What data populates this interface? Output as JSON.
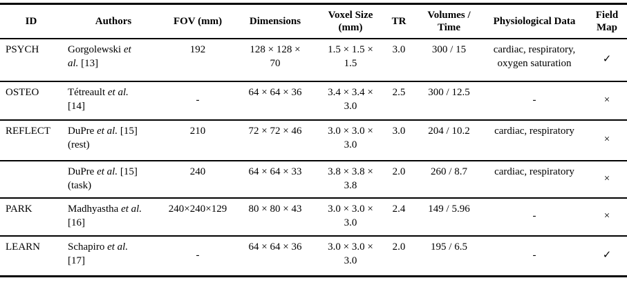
{
  "table": {
    "headers": [
      {
        "key": "id",
        "label": "ID"
      },
      {
        "key": "authors",
        "label": "Authors"
      },
      {
        "key": "fov",
        "label": "FOV (mm)"
      },
      {
        "key": "dimensions",
        "label": "Dimensions"
      },
      {
        "key": "voxel_size",
        "label": "Voxel Size\n(mm)"
      },
      {
        "key": "tr",
        "label": "TR"
      },
      {
        "key": "volumes_time",
        "label": "Volumes /\nTime"
      },
      {
        "key": "physiological_data",
        "label": "Physiological Data"
      },
      {
        "key": "field_map",
        "label": "Field\nMap"
      }
    ],
    "symbols": {
      "check": "✓",
      "cross": "×",
      "none": "-"
    },
    "rows": [
      {
        "id": "PSYCH",
        "authors": [
          {
            "text": "Gorgolewski ",
            "italic": false
          },
          {
            "text": "et\nal.",
            "italic": true
          },
          {
            "text": " [13]",
            "italic": false
          }
        ],
        "fov": "192",
        "dimensions": "128 × 128 ×\n70",
        "voxel_size": "1.5 × 1.5 ×\n1.5",
        "tr": "3.0",
        "volumes_time": "300 / 15",
        "physiological_data": "cardiac, respiratory,\noxygen saturation",
        "field_map": "✓"
      },
      {
        "id": "OSTEO",
        "authors": [
          {
            "text": "Tétreault ",
            "italic": false
          },
          {
            "text": "et al.",
            "italic": true
          },
          {
            "text": "\n[14]",
            "italic": false
          }
        ],
        "fov": "-",
        "dimensions": "64 × 64 × 36",
        "voxel_size": "3.4 × 3.4 ×\n3.0",
        "tr": "2.5",
        "volumes_time": "300 / 12.5",
        "physiological_data": "-",
        "field_map": "×"
      },
      {
        "id": "REFLECT",
        "authors": [
          {
            "text": "DuPre ",
            "italic": false
          },
          {
            "text": "et al.",
            "italic": true
          },
          {
            "text": " [15]\n(rest)",
            "italic": false
          }
        ],
        "fov": "210",
        "dimensions": "72 × 72 × 46",
        "voxel_size": "3.0 × 3.0 ×\n3.0",
        "tr": "3.0",
        "volumes_time": "204 / 10.2",
        "physiological_data": "cardiac, respiratory",
        "field_map": "×"
      },
      {
        "id": "",
        "authors": [
          {
            "text": "DuPre ",
            "italic": false
          },
          {
            "text": "et al.",
            "italic": true
          },
          {
            "text": " [15]\n(task)",
            "italic": false
          }
        ],
        "fov": "240",
        "dimensions": "64 × 64 × 33",
        "voxel_size": "3.8 × 3.8 ×\n3.8",
        "tr": "2.0",
        "volumes_time": "260 / 8.7",
        "physiological_data": "cardiac, respiratory",
        "field_map": "×"
      },
      {
        "id": "PARK",
        "authors": [
          {
            "text": "Madhyastha ",
            "italic": false
          },
          {
            "text": "et al.",
            "italic": true
          },
          {
            "text": "\n[16]",
            "italic": false
          }
        ],
        "fov": "240×240×129",
        "dimensions": "80 × 80 × 43",
        "voxel_size": "3.0 × 3.0 ×\n3.0",
        "tr": "2.4",
        "volumes_time": "149 / 5.96",
        "physiological_data": "-",
        "field_map": "×"
      },
      {
        "id": "LEARN",
        "authors": [
          {
            "text": "Schapiro ",
            "italic": false
          },
          {
            "text": "et al.",
            "italic": true
          },
          {
            "text": "\n[17]",
            "italic": false
          }
        ],
        "fov": "-",
        "dimensions": "64 × 64 × 36",
        "voxel_size": "3.0 × 3.0 ×\n3.0",
        "tr": "2.0",
        "volumes_time": "195 / 6.5",
        "physiological_data": "-",
        "field_map": "✓"
      }
    ]
  }
}
